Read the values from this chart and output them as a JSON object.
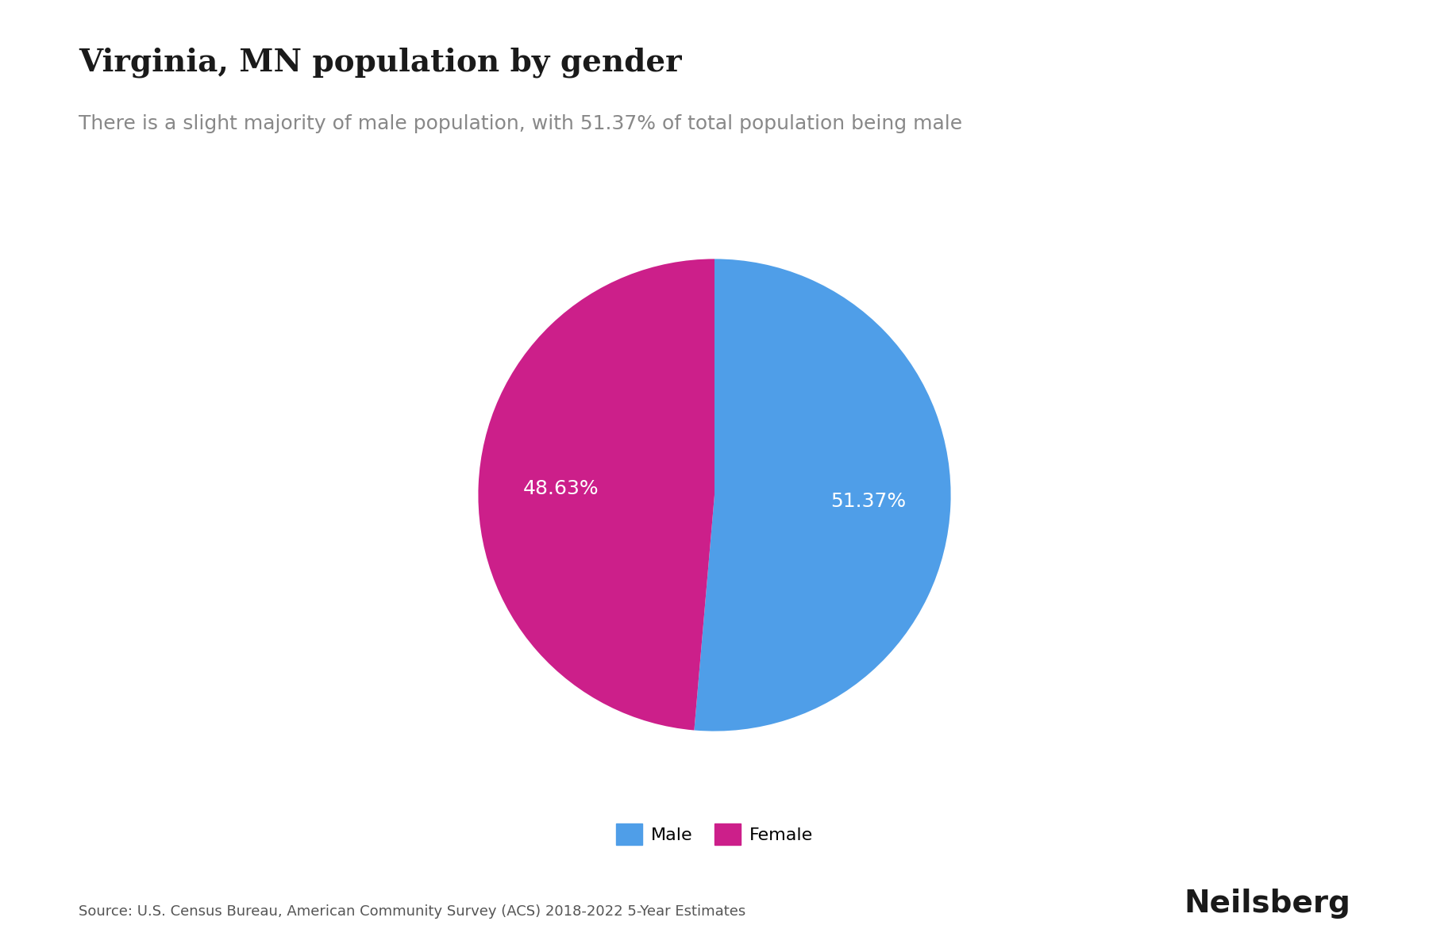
{
  "title": "Virginia, MN population by gender",
  "subtitle": "There is a slight majority of male population, with 51.37% of total population being male",
  "male_pct": 51.37,
  "female_pct": 48.63,
  "male_color": "#4F9EE8",
  "female_color": "#CC1F8A",
  "label_color": "#FFFFFF",
  "label_fontsize": 18,
  "title_fontsize": 28,
  "subtitle_fontsize": 18,
  "source_text": "Source: U.S. Census Bureau, American Community Survey (ACS) 2018-2022 5-Year Estimates",
  "source_fontsize": 13,
  "brand_text": "Neilsberg",
  "brand_fontsize": 28,
  "legend_labels": [
    "Male",
    "Female"
  ],
  "background_color": "#FFFFFF"
}
